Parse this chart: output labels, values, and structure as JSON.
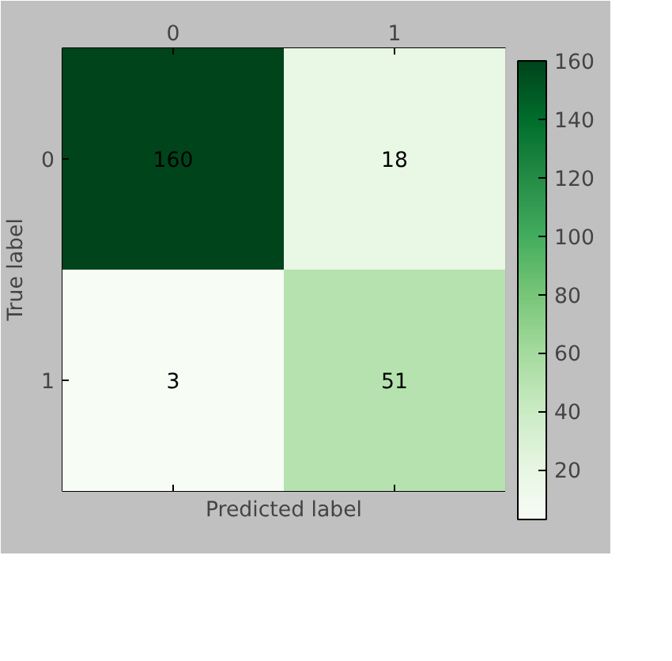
{
  "chart_data": {
    "type": "heatmap",
    "xlabel": "Predicted label",
    "ylabel": "True label",
    "categories": [
      "0",
      "1"
    ],
    "y_categories": [
      "0",
      "1"
    ],
    "cells": [
      [
        160,
        18
      ],
      [
        3,
        51
      ]
    ],
    "clim": [
      3,
      160
    ],
    "cticks": [
      20,
      40,
      60,
      80,
      100,
      120,
      140,
      160
    ],
    "data_labels": true
  }
}
